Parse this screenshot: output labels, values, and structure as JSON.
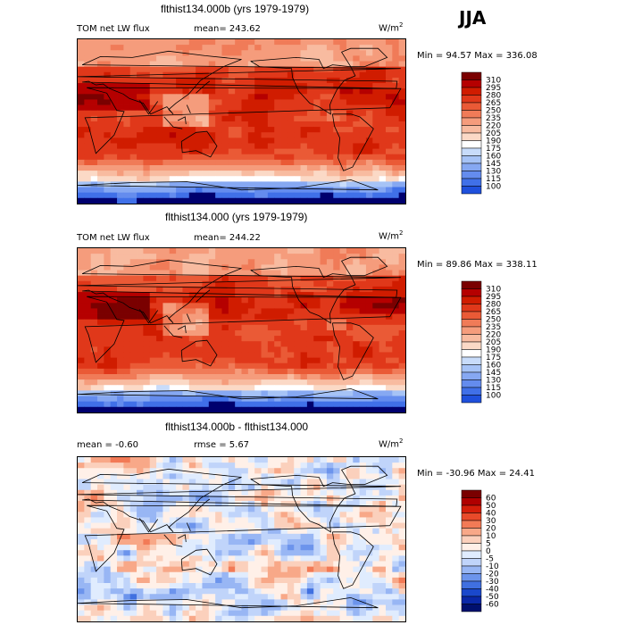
{
  "season": "JJA",
  "chart_data": [
    {
      "type": "heatmap",
      "title": "flthist134.000b (yrs 1979-1979)",
      "variable": "TOM net LW flux",
      "stat_text": "mean= 243.62",
      "units": "W/m",
      "units_exp": "2",
      "min_max": "Min =  94.57 Max = 336.08",
      "legend_levels": [
        "310",
        "295",
        "280",
        "265",
        "250",
        "235",
        "220",
        "205",
        "190",
        "175",
        "160",
        "145",
        "130",
        "115",
        "100"
      ],
      "colors": [
        "#7a0000",
        "#b50000",
        "#d01c00",
        "#e0381a",
        "#ea5a36",
        "#f07b58",
        "#f59c7c",
        "#f8bba0",
        "#fbd9c6",
        "#ffffff",
        "#c8dcfa",
        "#a6c3f6",
        "#86a8f2",
        "#648cee",
        "#4070e8",
        "#1f50dc",
        "#0a30c4",
        "#001a9a",
        "#00006e"
      ]
    },
    {
      "type": "heatmap",
      "title": "flthist134.000 (yrs 1979-1979)",
      "variable": "TOM net LW flux",
      "stat_text": "mean= 244.22",
      "units": "W/m",
      "units_exp": "2",
      "min_max": "Min =  89.86 Max = 338.11",
      "legend_levels": [
        "310",
        "295",
        "280",
        "265",
        "250",
        "235",
        "220",
        "205",
        "190",
        "175",
        "160",
        "145",
        "130",
        "115",
        "100"
      ]
    },
    {
      "type": "heatmap",
      "title": "flthist134.000b - flthist134.000",
      "stat_text": "mean =   -0.60",
      "stat_text2": "rmse =   5.67",
      "units": "W/m",
      "units_exp": "2",
      "min_max": "Min = -30.96 Max =  24.41",
      "legend_levels": [
        "60",
        "50",
        "40",
        "30",
        "20",
        "10",
        "5",
        "0",
        "-5",
        "-10",
        "-20",
        "-30",
        "-40",
        "-50",
        "-60"
      ]
    }
  ]
}
